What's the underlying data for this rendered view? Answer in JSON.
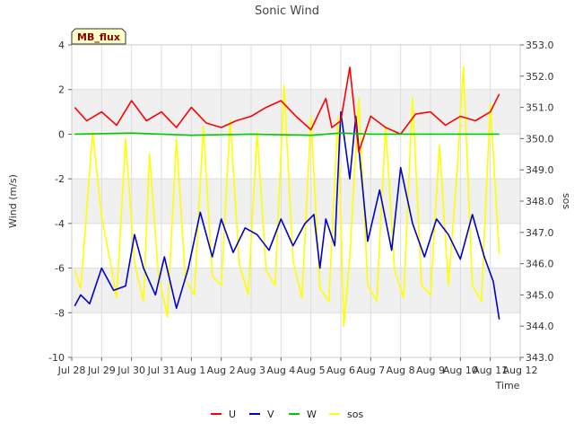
{
  "chart_data": {
    "type": "line",
    "title": "Sonic Wind",
    "badge": "MB_flux",
    "xlabel": "Time",
    "ylabel": "Wind (m/s)",
    "y2label": "sos",
    "ylim": [
      -10,
      4
    ],
    "y2lim": [
      343.0,
      353.0
    ],
    "yticks": [
      -10,
      -8,
      -6,
      -4,
      -2,
      0,
      2,
      4
    ],
    "y2ticks": [
      343.0,
      344.0,
      345.0,
      346.0,
      347.0,
      348.0,
      349.0,
      350.0,
      351.0,
      352.0,
      353.0
    ],
    "xlim": [
      0,
      15
    ],
    "xtick_labels": [
      "Jul 28",
      "Jul 29",
      "Jul 30",
      "Jul 31",
      "Aug 1",
      "Aug 2",
      "Aug 3",
      "Aug 4",
      "Aug 5",
      "Aug 6",
      "Aug 7",
      "Aug 8",
      "Aug 9",
      "Aug 10",
      "Aug 11",
      "Aug 12"
    ],
    "x_unit": "days since Jul 28",
    "bands": [
      [
        -8,
        -6
      ],
      [
        -4,
        -2
      ],
      [
        0,
        2
      ]
    ],
    "legend_position": "bottom-center",
    "series": [
      {
        "name": "U",
        "axis": "left",
        "color": "#ff0000",
        "x": [
          0.1,
          0.5,
          1.0,
          1.5,
          2.0,
          2.5,
          3.0,
          3.5,
          4.0,
          4.5,
          5.0,
          5.5,
          6.0,
          6.5,
          7.0,
          7.5,
          8.0,
          8.5,
          8.7,
          9.0,
          9.3,
          9.6,
          10.0,
          10.5,
          11.0,
          11.5,
          12.0,
          12.5,
          13.0,
          13.5,
          14.0,
          14.3
        ],
        "y": [
          1.2,
          0.6,
          1.0,
          0.4,
          1.5,
          0.6,
          1.0,
          0.3,
          1.2,
          0.5,
          0.3,
          0.6,
          0.8,
          1.2,
          1.5,
          0.8,
          0.2,
          1.6,
          0.3,
          0.6,
          3.0,
          -0.8,
          0.8,
          0.3,
          0.0,
          0.9,
          1.0,
          0.4,
          0.8,
          0.6,
          1.0,
          1.8
        ]
      },
      {
        "name": "V",
        "axis": "left",
        "color": "#0000cc",
        "x": [
          0.1,
          0.3,
          0.6,
          1.0,
          1.4,
          1.8,
          2.1,
          2.4,
          2.8,
          3.1,
          3.5,
          3.9,
          4.3,
          4.7,
          5.0,
          5.4,
          5.8,
          6.2,
          6.6,
          7.0,
          7.4,
          7.8,
          8.1,
          8.3,
          8.5,
          8.8,
          9.0,
          9.3,
          9.5,
          9.9,
          10.3,
          10.7,
          11.0,
          11.4,
          11.8,
          12.2,
          12.6,
          13.0,
          13.4,
          13.8,
          14.1,
          14.3
        ],
        "y": [
          -7.7,
          -7.2,
          -7.6,
          -6.0,
          -7.0,
          -6.8,
          -4.5,
          -6.0,
          -7.2,
          -5.5,
          -7.8,
          -6.0,
          -3.5,
          -5.5,
          -3.8,
          -5.3,
          -4.2,
          -4.5,
          -5.2,
          -3.8,
          -5.0,
          -4.0,
          -3.6,
          -6.0,
          -3.8,
          -5.0,
          1.0,
          -2.0,
          0.8,
          -4.8,
          -2.5,
          -5.2,
          -1.5,
          -4.0,
          -5.5,
          -3.8,
          -4.5,
          -5.6,
          -3.6,
          -5.5,
          -6.6,
          -8.3
        ]
      },
      {
        "name": "W",
        "axis": "left",
        "color": "#00cc00",
        "x": [
          0.1,
          2.0,
          4.0,
          6.0,
          8.0,
          9.0,
          10.0,
          12.0,
          14.3
        ],
        "y": [
          0.0,
          0.05,
          -0.05,
          0.0,
          -0.05,
          0.05,
          0.0,
          0.0,
          0.0
        ]
      },
      {
        "name": "sos",
        "axis": "right",
        "color": "#ffff00",
        "x": [
          0.1,
          0.3,
          0.7,
          1.0,
          1.3,
          1.5,
          1.8,
          2.1,
          2.4,
          2.6,
          2.9,
          3.2,
          3.5,
          3.8,
          4.1,
          4.4,
          4.7,
          5.0,
          5.3,
          5.6,
          5.9,
          6.2,
          6.5,
          6.8,
          7.1,
          7.4,
          7.7,
          8.0,
          8.3,
          8.6,
          8.9,
          9.1,
          9.3,
          9.6,
          9.9,
          10.2,
          10.5,
          10.8,
          11.1,
          11.4,
          11.7,
          12.0,
          12.3,
          12.6,
          12.9,
          13.1,
          13.4,
          13.7,
          14.0,
          14.3
        ],
        "y": [
          345.8,
          345.2,
          350.2,
          347.5,
          346.0,
          344.9,
          350.0,
          346.0,
          344.8,
          349.5,
          345.6,
          344.3,
          350.0,
          345.5,
          345.0,
          350.4,
          345.6,
          345.3,
          350.6,
          346.0,
          345.0,
          350.2,
          345.8,
          345.3,
          351.7,
          346.1,
          344.9,
          350.7,
          345.2,
          344.8,
          350.7,
          344.0,
          346.2,
          351.3,
          345.3,
          344.8,
          350.4,
          345.8,
          344.9,
          351.3,
          345.3,
          345.0,
          349.8,
          345.3,
          349.1,
          352.3,
          345.3,
          344.8,
          351.1,
          346.3
        ]
      }
    ]
  }
}
